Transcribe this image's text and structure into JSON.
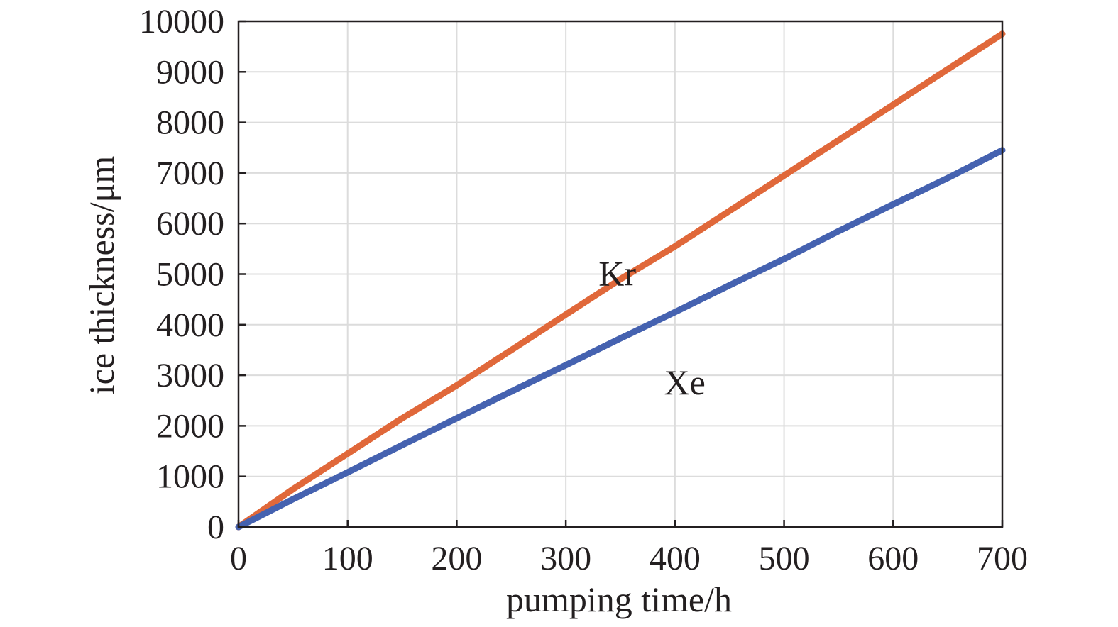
{
  "chart_data": {
    "type": "line",
    "xlabel": "pumping time/h",
    "ylabel": "ice thickness/μm",
    "xlim": [
      0,
      700
    ],
    "ylim": [
      0,
      10000
    ],
    "xticks": [
      0,
      100,
      200,
      300,
      400,
      500,
      600,
      700
    ],
    "xtick_labels": [
      "0",
      "100",
      "200",
      "300",
      "400",
      "500",
      "600",
      "700"
    ],
    "yticks": [
      0,
      1000,
      2000,
      3000,
      4000,
      5000,
      6000,
      7000,
      8000,
      9000,
      10000
    ],
    "ytick_labels": [
      "0",
      "1000",
      "2000",
      "3000",
      "4000",
      "5000",
      "6000",
      "7000",
      "8000",
      "9000",
      "10000"
    ],
    "grid": true,
    "legend": "none",
    "series": [
      {
        "name": "Kr",
        "color": "#e0683a",
        "x": [
          0,
          50,
          100,
          150,
          200,
          250,
          300,
          350,
          400,
          450,
          500,
          550,
          600,
          650,
          700
        ],
        "y": [
          0,
          750,
          1450,
          2150,
          2800,
          3500,
          4200,
          4900,
          5550,
          6250,
          6950,
          7650,
          8350,
          9050,
          9750
        ]
      },
      {
        "name": "Xe",
        "color": "#4562b0",
        "x": [
          0,
          50,
          100,
          150,
          200,
          250,
          300,
          350,
          400,
          450,
          500,
          550,
          600,
          650,
          700
        ],
        "y": [
          0,
          550,
          1080,
          1620,
          2150,
          2680,
          3200,
          3730,
          4250,
          4780,
          5300,
          5850,
          6380,
          6900,
          7450
        ]
      }
    ]
  }
}
